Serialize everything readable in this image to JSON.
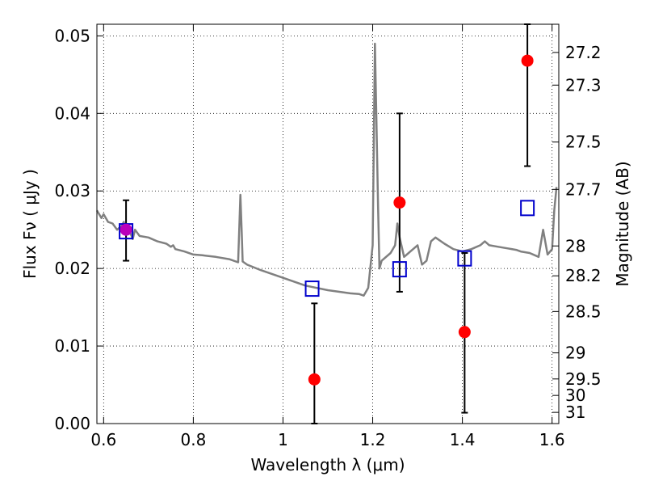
{
  "chart_data": {
    "type": "scatter",
    "xlabel": "Wavelength  λ (μm)",
    "ylabel": "Flux  Fν  ( μJy )",
    "y2label": "Magnitude (AB)",
    "xlim": [
      0.585,
      1.615
    ],
    "ylim": [
      0.0,
      0.0515
    ],
    "grid": true,
    "x_ticks": [
      {
        "value": 0.6,
        "label": "0.6"
      },
      {
        "value": 0.8,
        "label": "0.8"
      },
      {
        "value": 1.0,
        "label": "1"
      },
      {
        "value": 1.2,
        "label": "1.2"
      },
      {
        "value": 1.4,
        "label": "1.4"
      },
      {
        "value": 1.6,
        "label": "1.6"
      }
    ],
    "y_ticks": [
      {
        "value": 0.0,
        "label": "0.00"
      },
      {
        "value": 0.01,
        "label": "0.01"
      },
      {
        "value": 0.02,
        "label": "0.02"
      },
      {
        "value": 0.03,
        "label": "0.03"
      },
      {
        "value": 0.04,
        "label": "0.04"
      },
      {
        "value": 0.05,
        "label": "0.05"
      }
    ],
    "y2_ticks": [
      {
        "value": 27.2,
        "label": "27.2"
      },
      {
        "value": 27.3,
        "label": "27.3"
      },
      {
        "value": 27.5,
        "label": "27.5"
      },
      {
        "value": 27.7,
        "label": "27.7"
      },
      {
        "value": 28.0,
        "label": "28"
      },
      {
        "value": 28.2,
        "label": "28.2"
      },
      {
        "value": 28.5,
        "label": "28.5"
      },
      {
        "value": 29.0,
        "label": "29"
      },
      {
        "value": 29.5,
        "label": "29.5"
      },
      {
        "value": 30.0,
        "label": "30"
      },
      {
        "value": 31.0,
        "label": "31"
      }
    ],
    "series": [
      {
        "kind": "model_spectrum",
        "color": "#808080",
        "x": [
          0.585,
          0.595,
          0.6,
          0.61,
          0.62,
          0.63,
          0.64,
          0.645,
          0.65,
          0.66,
          0.665,
          0.67,
          0.68,
          0.7,
          0.72,
          0.74,
          0.75,
          0.755,
          0.76,
          0.78,
          0.8,
          0.82,
          0.85,
          0.88,
          0.9,
          0.905,
          0.908,
          0.91,
          0.92,
          0.95,
          1.0,
          1.05,
          1.1,
          1.15,
          1.17,
          1.18,
          1.19,
          1.2,
          1.205,
          1.208,
          1.212,
          1.215,
          1.22,
          1.24,
          1.25,
          1.255,
          1.26,
          1.27,
          1.28,
          1.3,
          1.31,
          1.32,
          1.33,
          1.34,
          1.36,
          1.38,
          1.4,
          1.42,
          1.44,
          1.45,
          1.46,
          1.48,
          1.5,
          1.52,
          1.53,
          1.55,
          1.57,
          1.58,
          1.59,
          1.6,
          1.605,
          1.61
        ],
        "y": [
          0.0275,
          0.0265,
          0.027,
          0.026,
          0.0258,
          0.025,
          0.0255,
          0.026,
          0.025,
          0.0245,
          0.0238,
          0.025,
          0.0242,
          0.024,
          0.0235,
          0.0232,
          0.0228,
          0.023,
          0.0225,
          0.0222,
          0.0218,
          0.0217,
          0.0215,
          0.0212,
          0.0208,
          0.0295,
          0.0245,
          0.0209,
          0.0205,
          0.0198,
          0.0188,
          0.0178,
          0.0172,
          0.0168,
          0.0167,
          0.0165,
          0.0175,
          0.023,
          0.049,
          0.04,
          0.028,
          0.02,
          0.021,
          0.022,
          0.023,
          0.0258,
          0.024,
          0.0215,
          0.022,
          0.023,
          0.0205,
          0.021,
          0.0235,
          0.024,
          0.0232,
          0.0225,
          0.0222,
          0.0225,
          0.023,
          0.0235,
          0.023,
          0.0228,
          0.0226,
          0.0224,
          0.0222,
          0.022,
          0.0215,
          0.025,
          0.0218,
          0.0225,
          0.0275,
          0.0305
        ]
      },
      {
        "kind": "model_points",
        "marker": "open-square",
        "color": "#0000cc",
        "x": [
          0.65,
          1.065,
          1.26,
          1.405,
          1.545
        ],
        "y": [
          0.0248,
          0.0174,
          0.0199,
          0.0213,
          0.0278
        ]
      },
      {
        "kind": "observed",
        "marker": "filled-circle",
        "color": "#ff0000",
        "x": [
          0.65,
          1.07,
          1.26,
          1.405,
          1.545
        ],
        "y": [
          0.025,
          0.0057,
          0.0285,
          0.0118,
          0.0468
        ],
        "yerr_low": [
          0.021,
          0.0,
          0.017,
          0.0014,
          0.0332
        ],
        "yerr_high": [
          0.0288,
          0.0155,
          0.04,
          0.022,
          0.0515
        ]
      }
    ],
    "overlap_marker_color": "#bb00bb"
  }
}
